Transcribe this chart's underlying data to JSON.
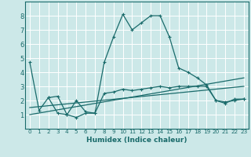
{
  "title": "",
  "xlabel": "Humidex (Indice chaleur)",
  "ylabel": "",
  "bg_color": "#cce8e8",
  "line_color": "#1a6b6b",
  "grid_color": "#ffffff",
  "xlim": [
    -0.5,
    23.5
  ],
  "ylim": [
    0,
    9
  ],
  "xticks": [
    0,
    1,
    2,
    3,
    4,
    5,
    6,
    7,
    8,
    9,
    10,
    11,
    12,
    13,
    14,
    15,
    16,
    17,
    18,
    19,
    20,
    21,
    22,
    23
  ],
  "yticks": [
    1,
    2,
    3,
    4,
    5,
    6,
    7,
    8
  ],
  "line1_x": [
    0,
    1,
    2,
    3,
    4,
    5,
    6,
    7,
    8,
    9,
    10,
    11,
    12,
    13,
    14,
    15,
    16,
    17,
    18,
    19,
    20,
    21,
    22,
    23
  ],
  "line1_y": [
    4.7,
    1.3,
    2.2,
    1.1,
    1.0,
    0.8,
    1.1,
    1.1,
    4.7,
    6.5,
    8.1,
    7.0,
    7.5,
    8.0,
    8.0,
    6.5,
    4.3,
    4.0,
    3.6,
    3.1,
    2.0,
    1.8,
    2.1,
    2.1
  ],
  "line2_x": [
    2,
    3,
    4,
    5,
    6,
    7,
    8,
    9,
    10,
    11,
    12,
    13,
    14,
    15,
    16,
    17,
    18,
    19,
    20,
    21,
    22,
    23
  ],
  "line2_y": [
    2.2,
    2.3,
    1.0,
    2.0,
    1.2,
    1.1,
    2.5,
    2.6,
    2.8,
    2.7,
    2.8,
    2.9,
    3.0,
    2.9,
    3.0,
    3.0,
    3.0,
    3.0,
    2.0,
    1.9,
    2.0,
    2.1
  ],
  "line3_x": [
    0,
    23
  ],
  "line3_y": [
    1.0,
    3.6
  ],
  "line4_x": [
    0,
    23
  ],
  "line4_y": [
    1.5,
    3.0
  ]
}
